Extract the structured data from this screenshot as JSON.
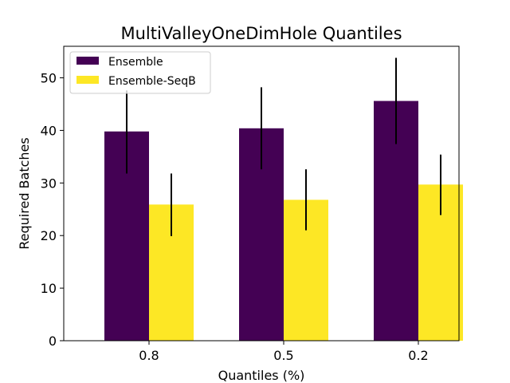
{
  "chart_data": {
    "type": "bar",
    "title": "MultiValleyOneDimHole Quantiles",
    "xlabel": "Quantiles (%)",
    "ylabel": "Required Batches",
    "categories": [
      "0.8",
      "0.5",
      "0.2"
    ],
    "ylim": [
      0,
      56
    ],
    "yticks": [
      0,
      10,
      20,
      30,
      40,
      50
    ],
    "grid": false,
    "legend_position": "top-left",
    "series": [
      {
        "name": "Ensemble",
        "color": "#440154",
        "values": [
          39.8,
          40.4,
          45.6
        ],
        "error_low": [
          31.8,
          32.6,
          37.4
        ],
        "error_high": [
          47.6,
          48.2,
          53.8
        ]
      },
      {
        "name": "Ensemble-SeqB",
        "color": "#fde725",
        "values": [
          25.9,
          26.8,
          29.7
        ],
        "error_low": [
          19.9,
          21.0,
          23.9
        ],
        "error_high": [
          31.8,
          32.6,
          35.4
        ]
      }
    ]
  }
}
